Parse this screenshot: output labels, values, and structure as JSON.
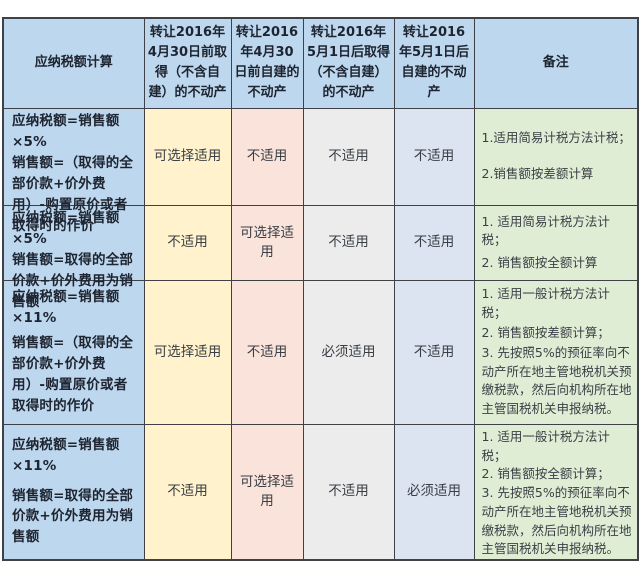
{
  "page": {
    "background": "#ffffff"
  },
  "colors": {
    "header_bg": "#bdd7ee",
    "calc_column_bg": "#bdd7ee",
    "acquired_before_column_bg": "#fff2cc",
    "selfbuilt_before_column_bg": "#f9e3da",
    "acquired_after_column_bg": "#ececec",
    "selfbuilt_after_column_bg": "#dce3f1",
    "remarks_column_bg": "#e0edd5",
    "grid_border": "#3f4146",
    "header_text": "#1e2430",
    "body_text": "#3a3f45"
  },
  "table": {
    "headers": [
      "应纳税额计算",
      "转让2016年4月30日前取得（不含自建）的不动产",
      "转让2016年4月30日前自建的不动产",
      "转让2016年5月1日后取得（不含自建）的不动产",
      "转让2016年5月1日后自建的不动产",
      "备注"
    ],
    "rows": [
      {
        "calc": [
          "应纳税额=销售额×5%",
          "销售额=（取得的全部价款+价外费用）-购置原价或者取得时的作价"
        ],
        "values": [
          "可选择适用",
          "不适用",
          "不适用",
          "不适用"
        ],
        "remarks": [
          "1.适用简易计税方法计税；",
          "2.销售额按差额计算"
        ]
      },
      {
        "calc": [
          "应纳税额=销售额×5%",
          "销售额=取得的全部价款+价外费用为销售额"
        ],
        "values": [
          "不适用",
          "可选择适用",
          "不适用",
          "不适用"
        ],
        "remarks": [
          "1. 适用简易计税方法计税；",
          "2. 销售额按全额计算"
        ]
      },
      {
        "calc": [
          "应纳税额=销售额×11%",
          "销售额=（取得的全部价款+价外费用）-购置原价或者取得时的作价"
        ],
        "values": [
          "可选择适用",
          "不适用",
          "必须适用",
          "不适用"
        ],
        "remarks": [
          "1. 适用一般计税方法计税；",
          "2. 销售额按差额计算；",
          "3. 先按照5%的预征率向不动产所在地主管地税机关预缴税款，然后向机构所在地主管国税机关申报纳税。"
        ]
      },
      {
        "calc": [
          "应纳税额=销售额×11%",
          "销售额=取得的全部价款+价外费用为销售额"
        ],
        "values": [
          "不适用",
          "可选择适用",
          "不适用",
          "必须适用"
        ],
        "remarks": [
          "1. 适用一般计税方法计税；",
          "2. 销售额按全额计算；",
          "3. 先按照5%的预征率向不动产所在地主管地税机关预缴税款，然后向机构所在地主管国税机关申报纳税。"
        ]
      }
    ]
  }
}
